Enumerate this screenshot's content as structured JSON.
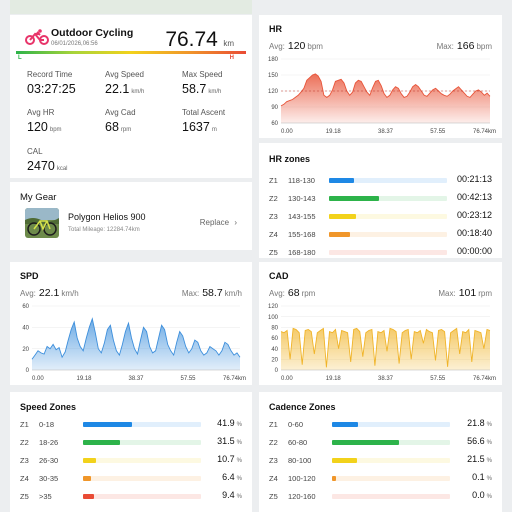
{
  "summary": {
    "activity_title": "Outdoor Cycling",
    "datetime": "06/01/2026,06:56",
    "distance_value": "76.74",
    "distance_unit": "km",
    "scale_low": "L",
    "scale_high": "H",
    "stats": [
      {
        "label": "Record Time",
        "value": "03:27:25",
        "unit": ""
      },
      {
        "label": "Avg Speed",
        "value": "22.1",
        "unit": "km/h"
      },
      {
        "label": "Max Speed",
        "value": "58.7",
        "unit": "km/h"
      },
      {
        "label": "Avg HR",
        "value": "120",
        "unit": "bpm"
      },
      {
        "label": "Avg Cad",
        "value": "68",
        "unit": "rpm"
      },
      {
        "label": "Total Ascent",
        "value": "1637",
        "unit": "m"
      },
      {
        "label": "CAL",
        "value": "2470",
        "unit": "kcal"
      }
    ]
  },
  "gear": {
    "title": "My Gear",
    "bike_name": "Polygon Helios 900",
    "mileage": "Total Mileage: 12284.74km",
    "replace_label": "Replace"
  },
  "hr_card": {
    "title": "HR",
    "avg_label": "Avg:",
    "avg_value": "120",
    "avg_unit": "bpm",
    "max_label": "Max:",
    "max_value": "166",
    "max_unit": "bpm",
    "color": "#e8553a"
  },
  "spd_card": {
    "title": "SPD",
    "avg_label": "Avg:",
    "avg_value": "22.1",
    "avg_unit": "km/h",
    "max_label": "Max:",
    "max_value": "58.7",
    "max_unit": "km/h",
    "color": "#3d8fdc"
  },
  "cad_card": {
    "title": "CAD",
    "avg_label": "Avg:",
    "avg_value": "68",
    "avg_unit": "rpm",
    "max_label": "Max:",
    "max_value": "101",
    "max_unit": "rpm",
    "color": "#f0b429"
  },
  "chart_data": [
    {
      "type": "area",
      "name": "hr",
      "xticks": [
        "0.00",
        "19.18",
        "38.37",
        "57.55",
        "76.74km"
      ],
      "yticks": [
        "60",
        "90",
        "120",
        "150",
        "180"
      ],
      "ylim": [
        60,
        180
      ],
      "avg": 120,
      "values": [
        92,
        95,
        100,
        102,
        104,
        108,
        112,
        118,
        125,
        140,
        145,
        150,
        152,
        148,
        138,
        112,
        108,
        112,
        122,
        138,
        140,
        142,
        135,
        120,
        112,
        118,
        135,
        140,
        138,
        128,
        118,
        112,
        126,
        138,
        140,
        130,
        115,
        108,
        112,
        122,
        128,
        125,
        115,
        108,
        110,
        118,
        128,
        132,
        128,
        120,
        112,
        110,
        116,
        122,
        125,
        120,
        115,
        112,
        110,
        114,
        120,
        124,
        128,
        122,
        116,
        110,
        108,
        114,
        120,
        122,
        118,
        112,
        116,
        110
      ]
    },
    {
      "type": "area",
      "name": "spd",
      "xticks": [
        "0.00",
        "19.18",
        "38.37",
        "57.55",
        "76.74km"
      ],
      "yticks": [
        "0",
        "20",
        "40",
        "60"
      ],
      "ylim": [
        0,
        60
      ],
      "values": [
        10,
        14,
        18,
        16,
        15,
        22,
        20,
        24,
        19,
        21,
        12,
        17,
        28,
        38,
        45,
        30,
        22,
        18,
        30,
        40,
        48,
        35,
        20,
        16,
        25,
        38,
        42,
        28,
        18,
        14,
        24,
        36,
        44,
        30,
        20,
        15,
        28,
        40,
        36,
        22,
        16,
        18,
        30,
        42,
        38,
        24,
        18,
        14,
        26,
        36,
        32,
        22,
        16,
        20,
        28,
        26,
        18,
        14,
        16,
        22,
        20,
        18,
        14,
        18,
        26,
        24,
        18,
        14,
        16,
        12
      ]
    },
    {
      "type": "area",
      "name": "cad",
      "xticks": [
        "0.00",
        "19.18",
        "38.37",
        "57.55",
        "76.74km"
      ],
      "yticks": [
        "0",
        "20",
        "40",
        "60",
        "80",
        "100",
        "120"
      ],
      "ylim": [
        0,
        120
      ],
      "values": [
        72,
        70,
        74,
        20,
        78,
        76,
        70,
        10,
        74,
        76,
        72,
        30,
        70,
        74,
        78,
        5,
        72,
        70,
        76,
        40,
        74,
        72,
        70,
        15,
        76,
        78,
        72,
        25,
        70,
        74,
        76,
        8,
        72,
        70,
        74,
        35,
        78,
        76,
        72,
        12,
        70,
        74,
        76,
        20,
        72,
        70,
        74,
        50,
        76,
        72,
        70,
        18,
        74,
        76,
        72,
        6,
        70,
        74,
        78,
        30,
        72,
        70,
        76,
        15,
        74,
        72,
        70,
        40,
        76,
        74
      ]
    },
    {
      "type": "bar",
      "name": "hr_zones",
      "categories": [
        "Z1",
        "Z2",
        "Z3",
        "Z4",
        "Z5"
      ],
      "ranges": [
        "118-130",
        "130-143",
        "143-155",
        "155-168",
        "168-180"
      ],
      "fractions": [
        0.21,
        0.42,
        0.23,
        0.18,
        0.0
      ],
      "values": [
        "00:21:13",
        "00:42:13",
        "00:23:12",
        "00:18:40",
        "00:00:00"
      ]
    },
    {
      "type": "bar",
      "name": "speed_zones",
      "categories": [
        "Z1",
        "Z2",
        "Z3",
        "Z4",
        "Z5"
      ],
      "ranges": [
        "0-18",
        "18-26",
        "26-30",
        "30-35",
        ">35"
      ],
      "values": [
        41.9,
        31.5,
        10.7,
        6.4,
        9.4
      ],
      "unit": "%"
    },
    {
      "type": "bar",
      "name": "cadence_zones",
      "categories": [
        "Z1",
        "Z2",
        "Z3",
        "Z4",
        "Z5"
      ],
      "ranges": [
        "0-60",
        "60-80",
        "80-100",
        "100-120",
        "120-160"
      ],
      "values": [
        21.8,
        56.6,
        21.5,
        0.1,
        0.0
      ],
      "unit": "%"
    }
  ],
  "hr_zones_title": "HR zones",
  "speed_zones_title": "Speed Zones",
  "cadence_zones_title": "Cadence Zones",
  "zone_colors": [
    "#1e88e5",
    "#2db34a",
    "#f2d21b",
    "#f0962a",
    "#e94b35"
  ]
}
